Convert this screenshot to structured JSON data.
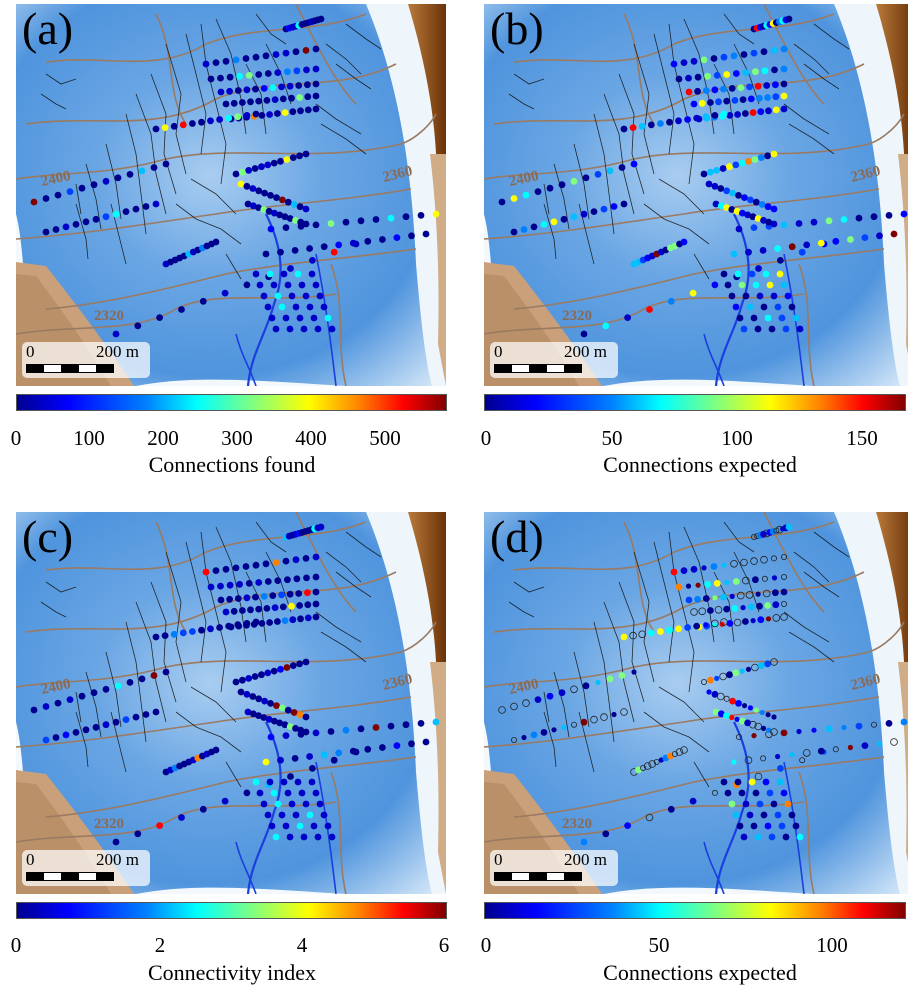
{
  "panels": [
    {
      "letter": "(a)",
      "cbar_label": "Connections found",
      "ticks": [
        "0",
        "100",
        "200",
        "300",
        "400",
        "500"
      ]
    },
    {
      "letter": "(b)",
      "cbar_label": "Connections expected",
      "ticks": [
        "0",
        "50",
        "100",
        "150"
      ]
    },
    {
      "letter": "(c)",
      "cbar_label": "Connectivity index",
      "ticks": [
        "0",
        "2",
        "4",
        "6"
      ]
    },
    {
      "letter": "(d)",
      "cbar_label": "Connections expected",
      "ticks": [
        "0",
        "50",
        "100"
      ]
    }
  ],
  "map": {
    "contour_labels": [
      "2400",
      "2360",
      "2320"
    ],
    "scale_zero": "0",
    "scale_length": "200 m"
  },
  "colors": {
    "ice_dark": "#2f7fd4",
    "ice_light": "#e8f2fb",
    "rock": "#7a3d10",
    "contour": "#9a7a62",
    "stream": "#1a3ee0"
  }
}
